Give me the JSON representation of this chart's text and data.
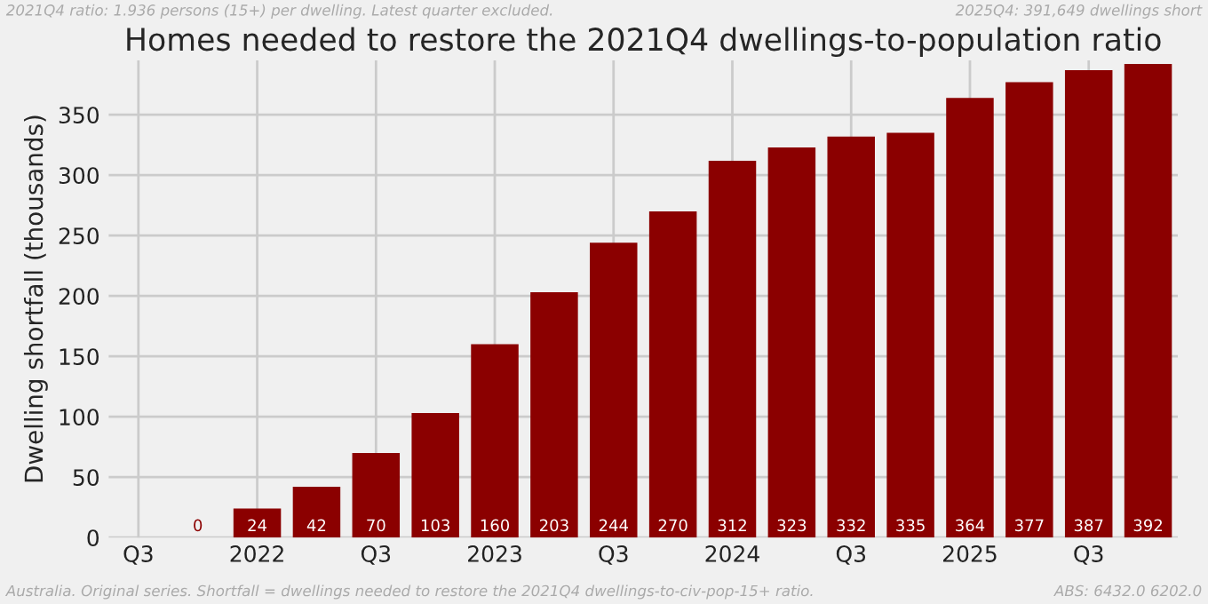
{
  "chart_data": {
    "type": "bar",
    "title": "Homes needed to restore the 2021Q4 dwellings-to-population ratio",
    "ylabel": "Dwelling shortfall (thousands)",
    "annotations": [
      "2021Q4 ratio: 1.936 persons (15+) per dwelling. Latest quarter excluded.",
      "2025Q4: 391,649 dwellings short",
      "Australia. Original series. Shortfall = dwellings needed to restore the 2021Q4 dwellings-to-civ-pop-15+ ratio.",
      "ABS: 6432.0 6202.0"
    ],
    "categories": [
      "Q3",
      null,
      "2022",
      null,
      "Q3",
      null,
      "2023",
      null,
      "Q3",
      null,
      "2024",
      null,
      "Q3",
      null,
      "2025",
      null,
      "Q3",
      null
    ],
    "values": [
      null,
      0,
      24,
      42,
      70,
      103,
      160,
      203,
      244,
      270,
      312,
      323,
      332,
      335,
      364,
      377,
      387,
      392
    ],
    "color": "#8b0000",
    "ylim": [
      0,
      395
    ],
    "yticks": [
      0,
      50,
      100,
      150,
      200,
      250,
      300,
      350
    ],
    "data_labels": true,
    "grid": true
  }
}
